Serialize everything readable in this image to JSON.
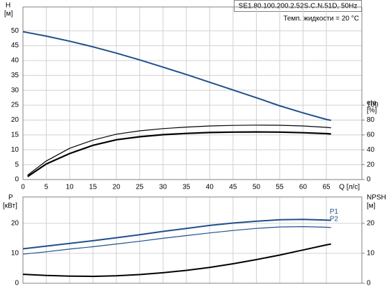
{
  "chart_data": [
    {
      "type": "line",
      "title": "SE1.80.100.200.2.52S.C.N.51D, 50Hz",
      "subtitle": "Темп. жидкости = 20 °C",
      "y_label": "H",
      "y_unit": "[м]",
      "y2_label": "eta",
      "y2_unit": "[%]",
      "x_label": "Q [л/с]",
      "x": [
        0,
        1,
        5,
        10,
        15,
        20,
        25,
        30,
        35,
        40,
        45,
        50,
        55,
        60,
        65,
        66
      ],
      "xlim": [
        0,
        72.6
      ],
      "xticks": [
        0,
        5,
        10,
        15,
        20,
        25,
        30,
        35,
        40,
        45,
        50,
        55,
        60,
        65
      ],
      "ylim": [
        0,
        58
      ],
      "yticks": [
        0,
        5,
        10,
        15,
        20,
        25,
        30,
        35,
        40,
        45,
        50
      ],
      "y2lim": [
        0,
        232
      ],
      "y2ticks": [
        0,
        20,
        40,
        60,
        80,
        100
      ],
      "grid": true,
      "series": [
        {
          "color": "#1f4e8c",
          "line_width": 2,
          "values": [
            49.7,
            49.4,
            48.2,
            46.5,
            44.6,
            42.5,
            40.2,
            37.8,
            35.3,
            32.7,
            30.1,
            27.5,
            24.8,
            22.4,
            20.2,
            19.9
          ]
        },
        {
          "color": "#000000",
          "line_width": 1.2,
          "axis": "y2",
          "values": [
            null,
            6,
            25,
            42,
            53,
            61,
            65.5,
            68.5,
            70.5,
            72,
            72.8,
            73.2,
            73,
            72,
            70.2,
            69.6
          ]
        },
        {
          "color": "#000000",
          "line_width": 2.2,
          "axis": "y2",
          "values": [
            null,
            4,
            21,
            35,
            46,
            53.5,
            57.5,
            60.3,
            62,
            63.2,
            63.8,
            64,
            63.8,
            63,
            61.7,
            61.3
          ]
        }
      ]
    },
    {
      "type": "line",
      "y_label": "P",
      "y_unit": "[кВт]",
      "y2_label": "NPSH",
      "y2_unit": "[м]",
      "x": [
        0,
        5,
        10,
        15,
        20,
        25,
        30,
        35,
        40,
        45,
        50,
        55,
        60,
        65,
        66
      ],
      "xlim": [
        0,
        72.6
      ],
      "ylim": [
        0,
        28.8
      ],
      "yticks": [
        0,
        10,
        20
      ],
      "y2lim": [
        0,
        28.8
      ],
      "y2ticks": [
        0,
        10,
        20
      ],
      "grid": true,
      "series": [
        {
          "name": "P1",
          "color": "#1f4e8c",
          "line_width": 2,
          "values": [
            11.5,
            12.4,
            13.3,
            14.2,
            15.2,
            16.2,
            17.3,
            18.3,
            19.3,
            20.1,
            20.7,
            21.2,
            21.3,
            21.1,
            21.0
          ]
        },
        {
          "name": "P2",
          "color": "#1f4e8c",
          "line_width": 1.2,
          "values": [
            9.7,
            10.5,
            11.4,
            12.2,
            13.1,
            14.0,
            15.0,
            15.9,
            16.8,
            17.6,
            18.3,
            18.8,
            18.9,
            18.7,
            18.6
          ]
        },
        {
          "color": "#000000",
          "line_width": 2,
          "axis": "y2",
          "values": [
            3.0,
            2.6,
            2.4,
            2.3,
            2.5,
            2.9,
            3.5,
            4.3,
            5.3,
            6.5,
            7.9,
            9.4,
            11.1,
            12.8,
            13.1
          ]
        }
      ]
    }
  ]
}
